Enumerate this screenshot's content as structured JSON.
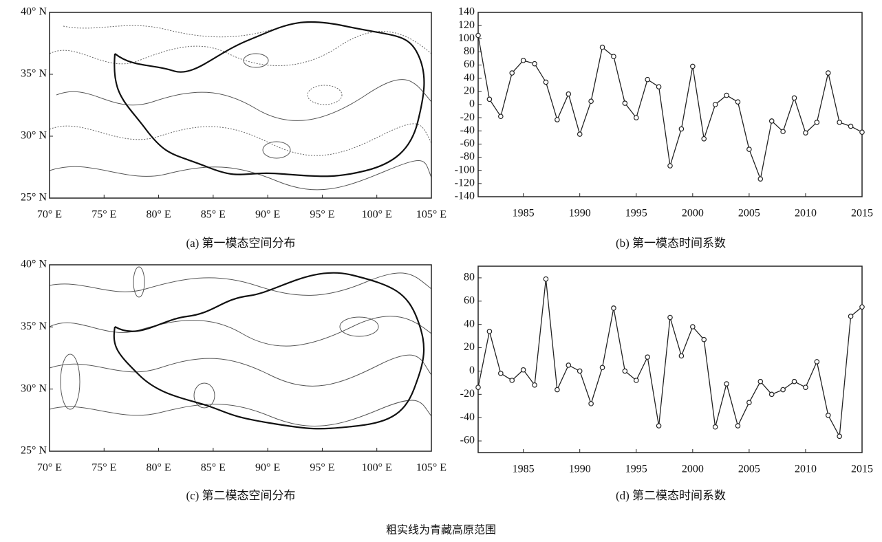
{
  "chart_data": [
    {
      "type": "contour-map",
      "caption": "(a)  第一模态空间分布",
      "xlim": [
        70,
        105
      ],
      "ylim": [
        25,
        40
      ],
      "xticks": [
        {
          "value": 70,
          "label": "70° E"
        },
        {
          "value": 75,
          "label": "75° E"
        },
        {
          "value": 80,
          "label": "80° E"
        },
        {
          "value": 85,
          "label": "85° E"
        },
        {
          "value": 90,
          "label": "90° E"
        },
        {
          "value": 95,
          "label": "95° E"
        },
        {
          "value": 100,
          "label": "100° E"
        },
        {
          "value": 105,
          "label": "105° E"
        }
      ],
      "yticks": [
        {
          "value": 25,
          "label": "25° N"
        },
        {
          "value": 30,
          "label": "30° N"
        },
        {
          "value": 35,
          "label": "35° N"
        },
        {
          "value": 40,
          "label": "40° N"
        }
      ]
    },
    {
      "type": "line",
      "caption": "(b)  第一模态时间系数",
      "x": [
        1981,
        1982,
        1983,
        1984,
        1985,
        1986,
        1987,
        1988,
        1989,
        1990,
        1991,
        1992,
        1993,
        1994,
        1995,
        1996,
        1997,
        1998,
        1999,
        2000,
        2001,
        2002,
        2003,
        2004,
        2005,
        2006,
        2007,
        2008,
        2009,
        2010,
        2011,
        2012,
        2013,
        2014,
        2015
      ],
      "values": [
        105,
        8,
        -18,
        48,
        67,
        62,
        34,
        -23,
        16,
        -45,
        5,
        87,
        73,
        2,
        -20,
        38,
        27,
        -93,
        -37,
        58,
        -52,
        0,
        14,
        4,
        -68,
        -113,
        -25,
        -41,
        10,
        -43,
        -27,
        48,
        -27,
        -33,
        -42
      ],
      "xlim": [
        1981,
        2015
      ],
      "xticks": [
        1985,
        1990,
        1995,
        2000,
        2005,
        2010,
        2015
      ],
      "ylim": [
        -140,
        140
      ],
      "yticks": [
        -140,
        -120,
        -100,
        -80,
        -60,
        -40,
        -20,
        0,
        20,
        40,
        60,
        80,
        100,
        120,
        140
      ],
      "color": "#222"
    },
    {
      "type": "contour-map",
      "caption": "(c)  第二模态空间分布",
      "xlim": [
        70,
        105
      ],
      "ylim": [
        25,
        40
      ],
      "xticks": [
        {
          "value": 70,
          "label": "70° E"
        },
        {
          "value": 75,
          "label": "75° E"
        },
        {
          "value": 80,
          "label": "80° E"
        },
        {
          "value": 85,
          "label": "85° E"
        },
        {
          "value": 90,
          "label": "90° E"
        },
        {
          "value": 95,
          "label": "95° E"
        },
        {
          "value": 100,
          "label": "100° E"
        },
        {
          "value": 105,
          "label": "105° E"
        }
      ],
      "yticks": [
        {
          "value": 25,
          "label": "25° N"
        },
        {
          "value": 30,
          "label": "30° N"
        },
        {
          "value": 35,
          "label": "35° N"
        },
        {
          "value": 40,
          "label": "40° N"
        }
      ]
    },
    {
      "type": "line",
      "caption": "(d)  第二模态时间系数",
      "x": [
        1981,
        1982,
        1983,
        1984,
        1985,
        1986,
        1987,
        1988,
        1989,
        1990,
        1991,
        1992,
        1993,
        1994,
        1995,
        1996,
        1997,
        1998,
        1999,
        2000,
        2001,
        2002,
        2003,
        2004,
        2005,
        2006,
        2007,
        2008,
        2009,
        2010,
        2011,
        2012,
        2013,
        2014,
        2015
      ],
      "values": [
        -14,
        34,
        -2,
        -8,
        1,
        -12,
        79,
        -16,
        5,
        0,
        -28,
        3,
        54,
        0,
        -8,
        12,
        -47,
        46,
        13,
        38,
        27,
        -48,
        -11,
        -47,
        -27,
        -9,
        -20,
        -16,
        -9,
        -14,
        8,
        -38,
        -56,
        47,
        55
      ],
      "xlim": [
        1981,
        2015
      ],
      "xticks": [
        1985,
        1990,
        1995,
        2000,
        2005,
        2010,
        2015
      ],
      "ylim": [
        -70,
        90
      ],
      "yticks": [
        -60,
        -40,
        -20,
        0,
        20,
        40,
        60,
        80
      ],
      "color": "#222"
    }
  ],
  "figure_note": "粗实线为青藏高原范围"
}
